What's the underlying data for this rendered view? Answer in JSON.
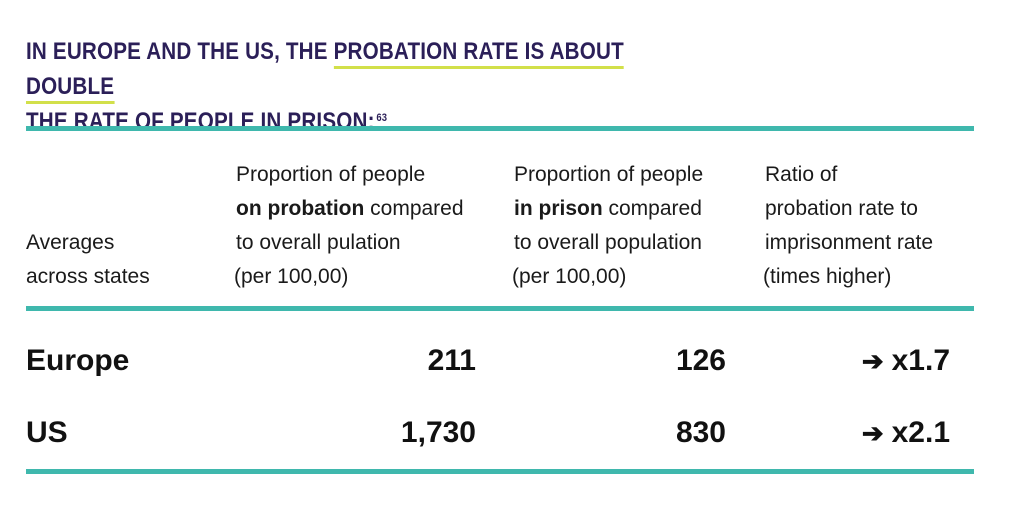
{
  "title": {
    "part1": "IN EUROPE AND THE US, THE ",
    "highlight": "PROBATION RATE IS ABOUT DOUBLE",
    "part2": "THE RATE OF PEOPLE IN PRISON:",
    "footnote": "63"
  },
  "headers": {
    "col0": {
      "line1": "Averages",
      "line2": "across states"
    },
    "col1": {
      "line1": "Proportion of people",
      "line2_bold": "on probation",
      "line2_rest": " compared",
      "line3": "to overall pulation",
      "line4": "(per 100,00)"
    },
    "col2": {
      "line1": "Proportion of people",
      "line2_bold": "in prison",
      "line2_rest": " compared",
      "line3": "to overall population",
      "line4": "(per 100,00)"
    },
    "col3": {
      "line1": "Ratio of",
      "line2": "probation rate to",
      "line3": "imprisonment rate",
      "line4": "(times higher)"
    }
  },
  "rows": [
    {
      "label": "Europe",
      "probation": "211",
      "prison": "126",
      "arrow": "➔",
      "ratio": "x1.7"
    },
    {
      "label": "US",
      "probation": "1,730",
      "prison": "830",
      "arrow": "➔",
      "ratio": "x2.1"
    }
  ],
  "colors": {
    "title": "#2b1f58",
    "highlight_underline": "#d2e04a",
    "rules": "#3fb8ad"
  }
}
